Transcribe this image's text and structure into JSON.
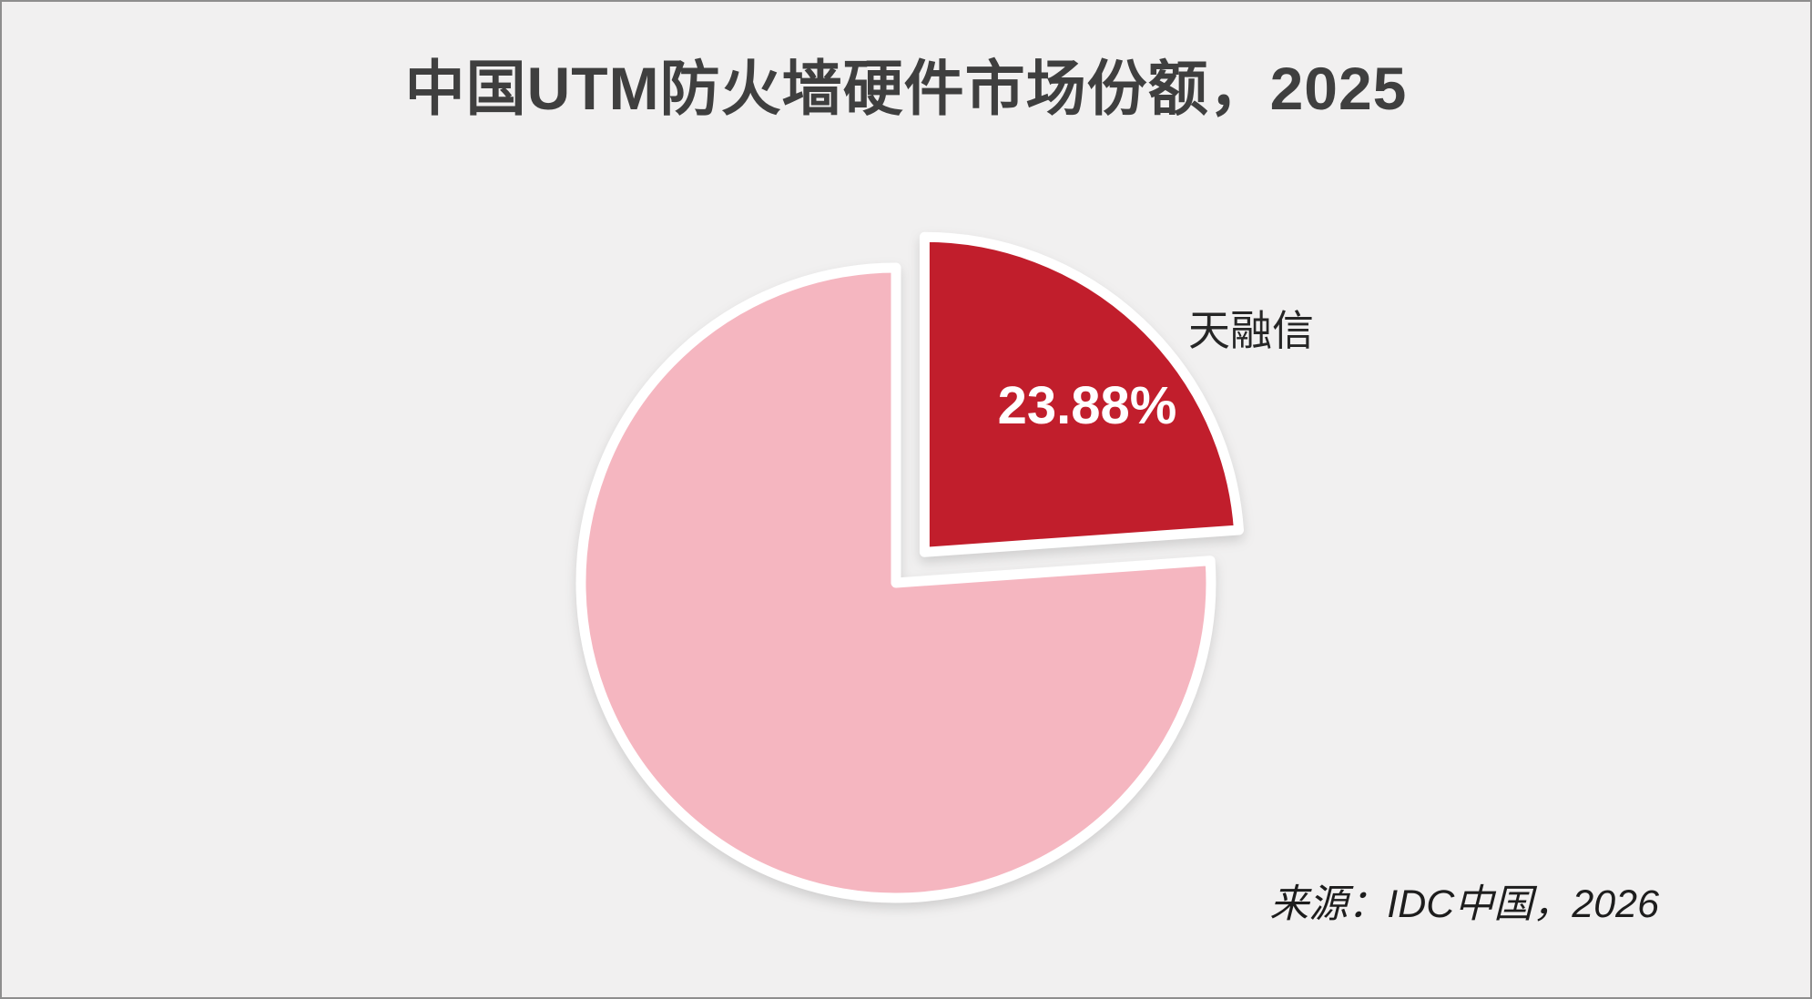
{
  "page": {
    "background_color": "#f1f0f0",
    "border_color": "#8e8e8e"
  },
  "chart_data": {
    "type": "pie",
    "title": "中国UTM防火墙硬件市场份额，2025",
    "title_color": "#3f3f3f",
    "source": "来源：IDC中国，2026",
    "source_color": "#1d1d1d",
    "legend_position": "none",
    "start_angle_deg": 0,
    "direction": "clockwise",
    "slice_stroke_color": "#ffffff",
    "slices": [
      {
        "label": "天融信",
        "value": 23.88,
        "value_label": "23.88%",
        "value_label_color": "#ffffff",
        "color": "#c11e2c",
        "exploded": true
      },
      {
        "label": "",
        "value": 76.12,
        "value_label": "",
        "value_label_color": "",
        "color": "#f5b6c0",
        "exploded": false
      }
    ],
    "label_color": "#262626"
  }
}
